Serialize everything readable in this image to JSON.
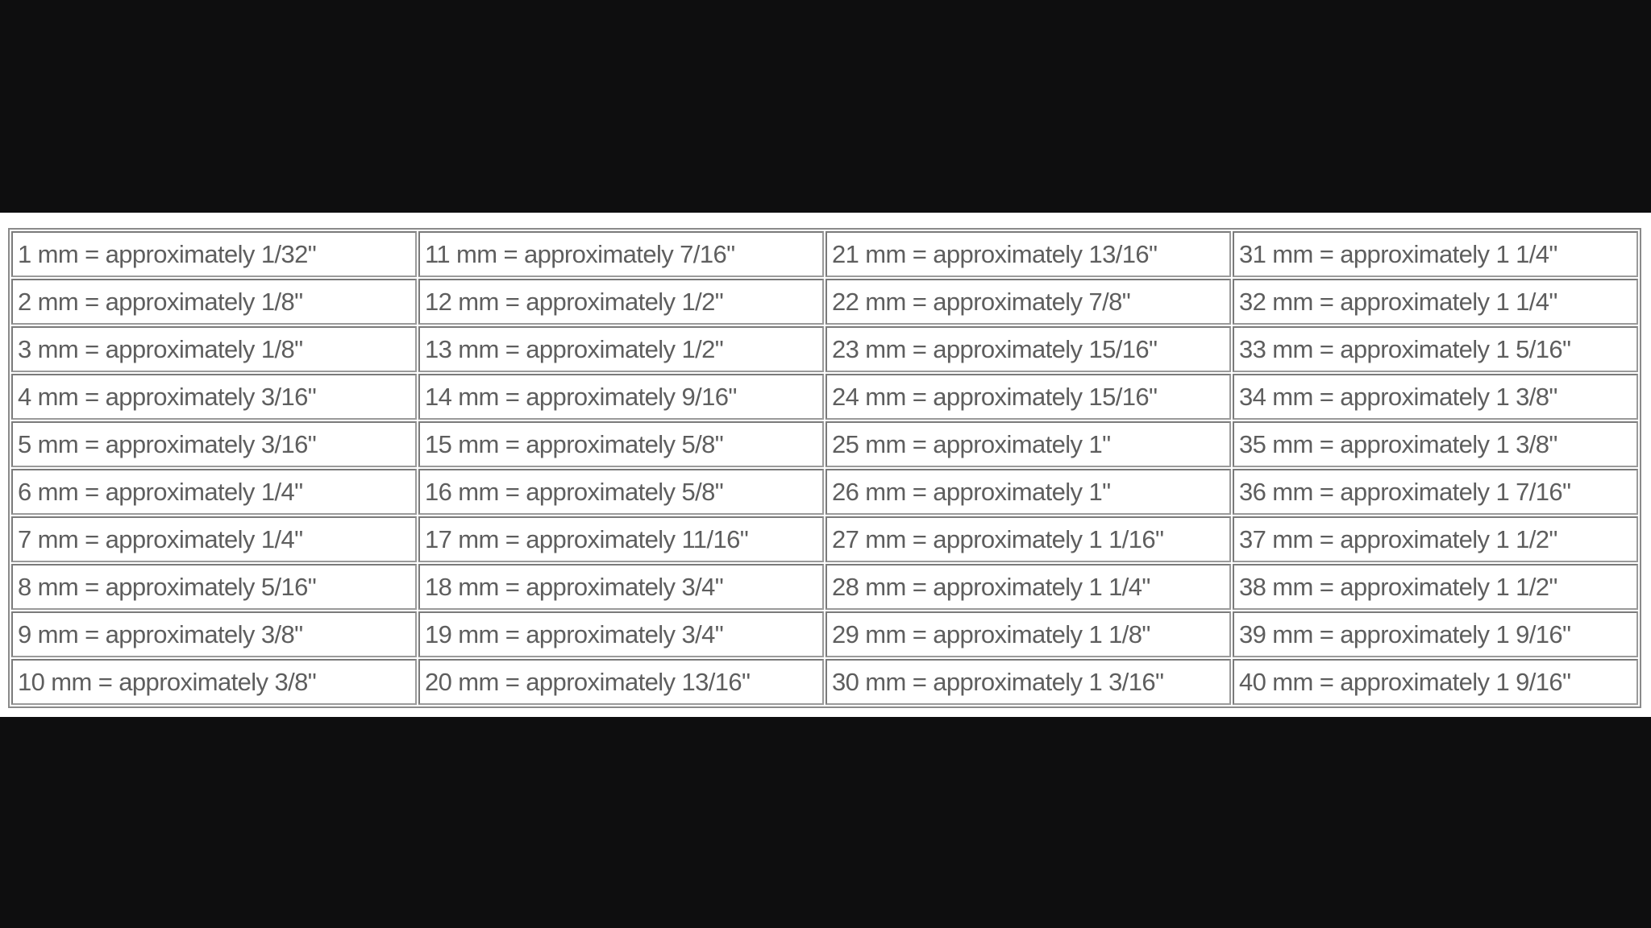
{
  "table": {
    "rows": [
      [
        "1 mm = approximately 1/32\"",
        "11 mm = approximately 7/16\"",
        "21 mm = approximately 13/16\"",
        "31 mm = approximately 1 1/4\""
      ],
      [
        "2 mm = approximately 1/8\"",
        "12 mm = approximately 1/2\"",
        "22 mm = approximately 7/8\"",
        "32 mm = approximately 1 1/4\""
      ],
      [
        "3 mm = approximately 1/8\"",
        "13 mm = approximately 1/2\"",
        "23 mm = approximately 15/16\"",
        "33 mm = approximately 1 5/16\""
      ],
      [
        "4 mm = approximately 3/16\"",
        "14 mm = approximately 9/16\"",
        "24 mm = approximately 15/16\"",
        "34 mm = approximately 1 3/8\""
      ],
      [
        "5 mm = approximately 3/16\"",
        "15 mm = approximately 5/8\"",
        "25 mm = approximately 1\"",
        "35 mm = approximately 1 3/8\""
      ],
      [
        "6 mm = approximately 1/4\"",
        "16 mm = approximately 5/8\"",
        "26 mm = approximately 1\"",
        "36 mm = approximately 1 7/16\""
      ],
      [
        "7 mm = approximately 1/4\"",
        "17 mm = approximately 11/16\"",
        "27 mm = approximately 1 1/16\"",
        "37 mm = approximately 1 1/2\""
      ],
      [
        "8 mm = approximately 5/16\"",
        "18 mm = approximately 3/4\"",
        "28 mm = approximately 1 1/4\"",
        "38 mm = approximately 1 1/2\""
      ],
      [
        "9 mm = approximately 3/8\"",
        "19 mm = approximately 3/4\"",
        "29 mm = approximately 1 1/8\"",
        "39 mm = approximately 1 9/16\""
      ],
      [
        "10 mm = approximately 3/8\"",
        "20 mm = approximately 13/16\"",
        "30 mm = approximately 1 3/16\"",
        "40 mm = approximately 1 9/16\""
      ]
    ]
  }
}
